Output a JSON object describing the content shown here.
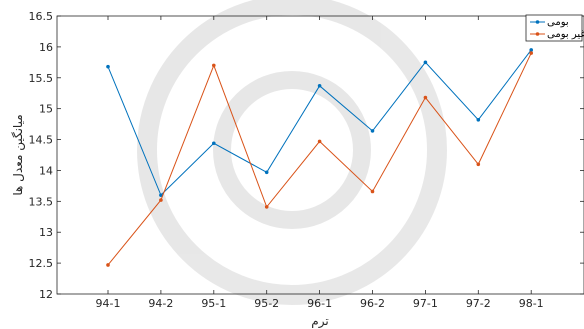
{
  "chart_data": {
    "type": "line",
    "categories": [
      "94-1",
      "94-2",
      "95-1",
      "95-2",
      "96-1",
      "96-2",
      "97-1",
      "97-2",
      "98-1"
    ],
    "series": [
      {
        "name": "بومی",
        "color": "#0072BD",
        "values": [
          15.68,
          13.6,
          14.44,
          13.97,
          15.37,
          14.64,
          15.75,
          14.82,
          15.95
        ]
      },
      {
        "name": "غیر بومی",
        "color": "#D95319",
        "values": [
          12.47,
          13.52,
          15.7,
          13.41,
          14.47,
          13.66,
          15.18,
          14.1,
          15.9
        ]
      }
    ],
    "title": "",
    "xlabel": "ترم",
    "ylabel": "میانگین معدل ها",
    "ylim": [
      12,
      16.5
    ],
    "yticks": [
      12,
      12.5,
      13,
      13.5,
      14,
      14.5,
      15,
      15.5,
      16,
      16.5
    ],
    "legend_position": "top-right",
    "grid": false
  }
}
